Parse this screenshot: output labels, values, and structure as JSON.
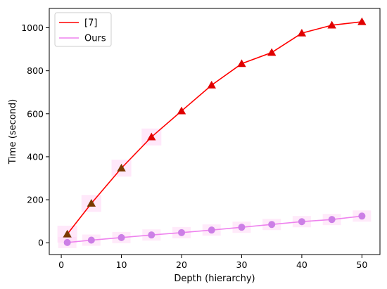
{
  "colors": {
    "series_7": "#ff0000",
    "series_7_marker": "#e00000",
    "series_7_overlap": "#7a3a00",
    "series_ours": "#ee82ee",
    "series_ours_marker": "#cc7fe6",
    "highlight": "#ffd6f5"
  },
  "chart_data": {
    "type": "line",
    "xlabel": "Depth (hierarchy)",
    "ylabel": "Time (second)",
    "xlim": [
      -2,
      53
    ],
    "ylim": [
      -55,
      1090
    ],
    "xticks": [
      0,
      10,
      20,
      30,
      40,
      50
    ],
    "yticks": [
      0,
      200,
      400,
      600,
      800,
      1000
    ],
    "legend_position": "top-left",
    "grid": false,
    "x": [
      1,
      5,
      10,
      15,
      20,
      25,
      30,
      35,
      40,
      45,
      50
    ],
    "series": [
      {
        "name": "[7]",
        "marker": "triangle",
        "values": [
          40,
          183,
          347,
          492,
          613,
          733,
          833,
          885,
          975,
          1012,
          1028
        ]
      },
      {
        "name": "Ours",
        "marker": "circle",
        "values": [
          1,
          12,
          24,
          36,
          47,
          59,
          72,
          85,
          98,
          108,
          124
        ]
      }
    ]
  }
}
